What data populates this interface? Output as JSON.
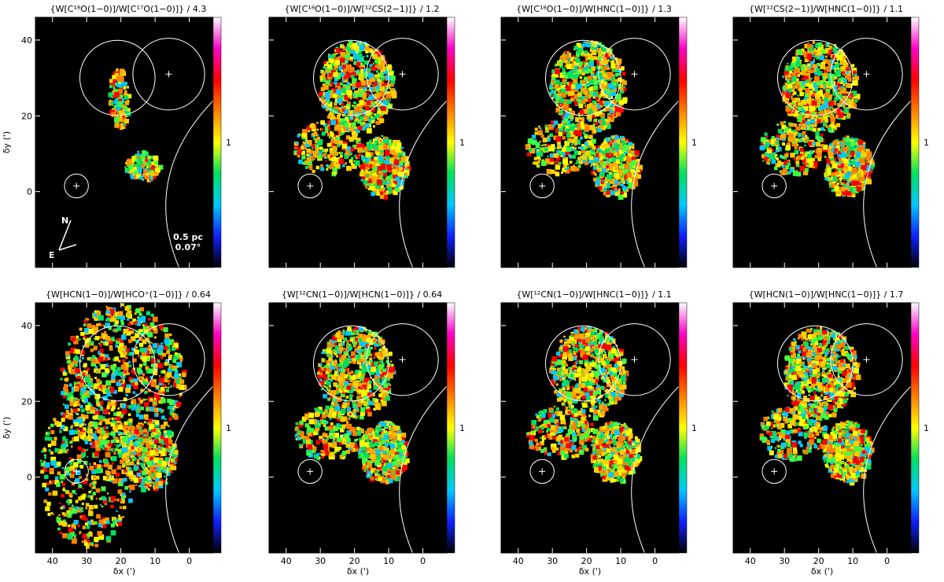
{
  "chart_data": {
    "type": "heatmap",
    "grid": false,
    "colormap_bar_label": "1",
    "colormap_stops": [
      "#000000",
      "#1020ff",
      "#00c8ff",
      "#00e060",
      "#ffff00",
      "#ff8000",
      "#ff0000",
      "#ff00c8",
      "#ffffff"
    ],
    "xlim": [
      45,
      -7
    ],
    "ylim": [
      -20,
      46
    ],
    "x_ticks": [
      40,
      30,
      20,
      10,
      0
    ],
    "y_ticks": [
      0,
      20,
      40
    ],
    "xlabel": "δx (')",
    "ylabel": "δy (')",
    "scalebar": {
      "line1": "0.5 pc",
      "line2": "0.07°"
    },
    "compass": {
      "north": "N",
      "east": "E"
    },
    "overlay_circles": [
      {
        "x": 21,
        "y": 30,
        "r": 11
      },
      {
        "x": 6,
        "y": 31,
        "r": 10.5
      },
      {
        "x": 33,
        "y": 1.5,
        "r": 3.5
      }
    ],
    "overlay_crosses": [
      {
        "x": 6,
        "y": 31
      },
      {
        "x": 33,
        "y": 1.5
      }
    ],
    "panels": [
      {
        "title": "{W[C¹⁸O(1−0)]/W[C¹⁷O(1−0)]} / 4.3",
        "ratio": 4.3,
        "coverage": "sparse"
      },
      {
        "title": "{W[C¹⁸O(1−0)]/W[¹²CS(2−1)]} / 1.2",
        "ratio": 1.2,
        "coverage": "full"
      },
      {
        "title": "{W[C¹⁸O(1−0)]/W[HNC(1−0)]} / 1.3",
        "ratio": 1.3,
        "coverage": "full"
      },
      {
        "title": "{W[¹²CS(2−1)]/W[HNC(1−0)]} / 1.1",
        "ratio": 1.1,
        "coverage": "full"
      },
      {
        "title": "{W[HCN(1−0)]/W[HCO⁺(1−0)]} / 0.64",
        "ratio": 0.64,
        "coverage": "wide"
      },
      {
        "title": "{W[¹²CN(1−0)]/W[HCN(1−0)]} / 0.64",
        "ratio": 0.64,
        "coverage": "full"
      },
      {
        "title": "{W[¹²CN(1−0)]/W[HNC(1−0)]} / 1.1",
        "ratio": 1.1,
        "coverage": "full"
      },
      {
        "title": "{W[HCN(1−0)]/W[HNC(1−0)]} / 1.7",
        "ratio": 1.7,
        "coverage": "full"
      }
    ]
  }
}
